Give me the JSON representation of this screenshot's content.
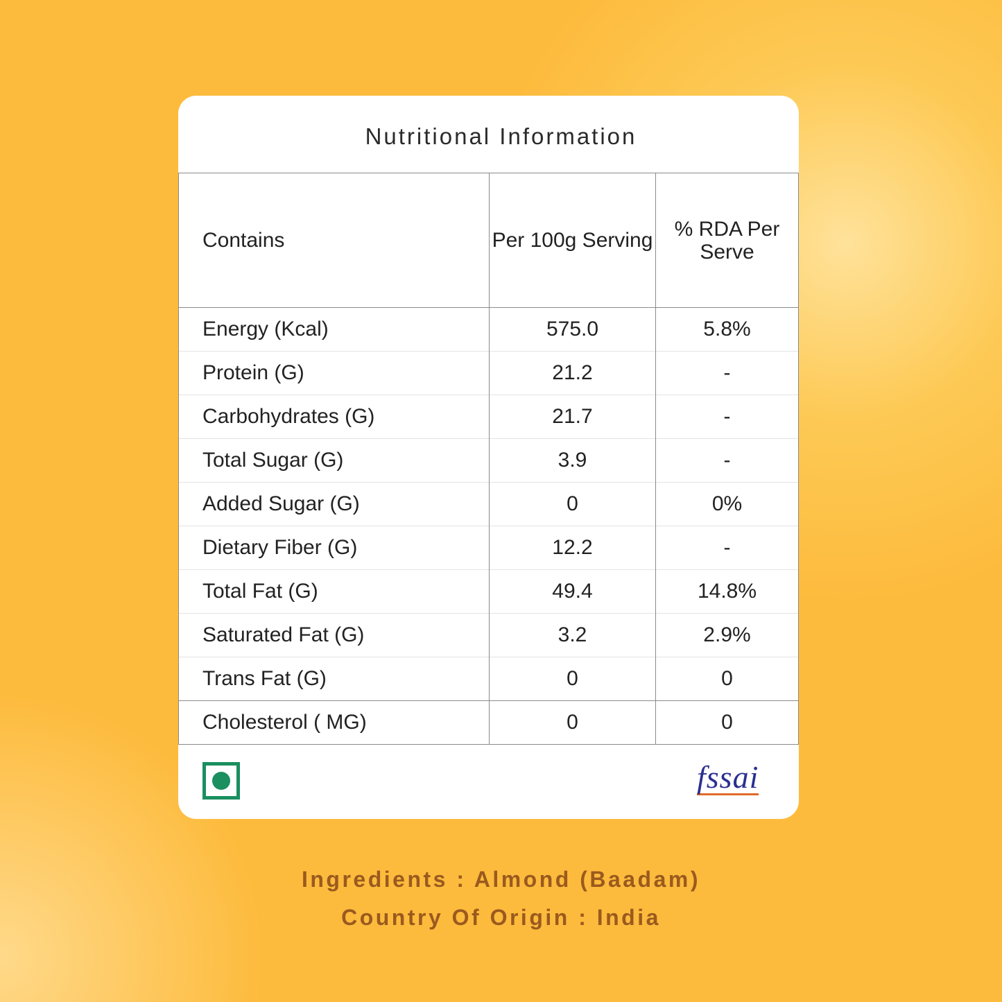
{
  "card": {
    "title": "Nutritional Information",
    "table": {
      "header": [
        "Contains",
        "Per 100g Serving",
        "% RDA Per Serve"
      ],
      "rows": [
        [
          "Energy (Kcal)",
          "575.0",
          "5.8%"
        ],
        [
          "Protein (G)",
          "21.2",
          "-"
        ],
        [
          "Carbohydrates (G)",
          "21.7",
          "-"
        ],
        [
          "Total Sugar (G)",
          "3.9",
          "-"
        ],
        [
          "Added Sugar (G)",
          "0",
          "0%"
        ],
        [
          "Dietary Fiber (G)",
          "12.2",
          "-"
        ],
        [
          "Total Fat (G)",
          "49.4",
          "14.8%"
        ],
        [
          "Saturated Fat (G)",
          "3.2",
          "2.9%"
        ],
        [
          "Trans Fat (G)",
          "0",
          "0"
        ],
        [
          "Cholesterol ( MG)",
          "0",
          "0"
        ]
      ]
    },
    "logo": "fssai"
  },
  "footer": {
    "ingredients": "Ingredients : Almond (Baadam)",
    "origin": "Country Of Origin : India"
  }
}
